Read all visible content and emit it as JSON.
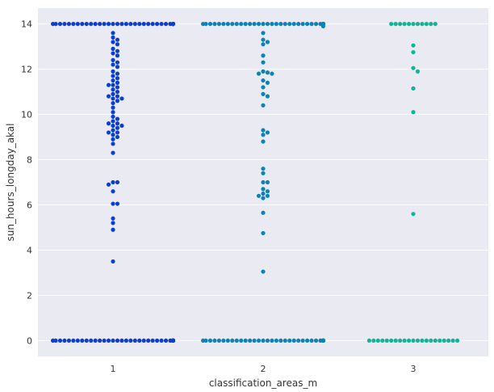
{
  "chart_data": {
    "type": "scatter",
    "subtype": "swarm",
    "xlabel": "classification_areas_m",
    "ylabel": "sun_hours_longday_akal",
    "categories": [
      "1",
      "2",
      "3"
    ],
    "ylim": [
      -0.7,
      14.7
    ],
    "yticks": [
      0,
      2,
      4,
      6,
      8,
      10,
      12,
      14
    ],
    "grid": true,
    "series": [
      {
        "category": "1",
        "color": "#0b3fd0",
        "values": [
          14,
          14,
          14,
          14,
          14,
          14,
          14,
          14,
          14,
          14,
          14,
          14,
          14,
          14,
          14,
          14,
          14,
          14,
          14,
          14,
          14,
          14,
          14,
          14,
          14,
          14,
          14,
          14,
          14,
          14,
          14,
          14,
          14,
          14,
          14,
          14,
          14,
          14,
          14,
          14,
          14,
          14,
          14,
          14,
          14,
          14,
          14,
          14,
          14,
          14,
          14,
          14,
          14,
          14,
          14,
          14,
          14,
          14,
          14,
          14,
          14,
          14,
          14,
          14,
          14,
          14,
          14,
          14,
          14,
          14,
          14,
          14,
          14,
          14,
          14,
          14,
          14,
          14,
          14,
          14,
          14,
          13.6,
          13.4,
          13.3,
          13.2,
          13.1,
          12.9,
          12.8,
          12.7,
          12.6,
          12.4,
          12.3,
          12.2,
          12.1,
          11.9,
          11.8,
          11.7,
          11.6,
          11.5,
          11.4,
          11.3,
          11.3,
          11.2,
          11.1,
          11.0,
          10.9,
          10.8,
          10.8,
          10.7,
          10.7,
          10.6,
          10.5,
          10.3,
          10.1,
          9.9,
          9.8,
          9.7,
          9.6,
          9.6,
          9.5,
          9.5,
          9.4,
          9.3,
          9.2,
          9.2,
          9.1,
          9.0,
          8.9,
          8.7,
          8.3,
          7.0,
          7.0,
          6.9,
          6.6,
          6.05,
          6.05,
          5.4,
          5.2,
          4.9,
          3.5,
          0,
          0,
          0,
          0,
          0,
          0,
          0,
          0,
          0,
          0,
          0,
          0,
          0,
          0,
          0,
          0,
          0,
          0,
          0,
          0,
          0,
          0,
          0,
          0,
          0,
          0,
          0,
          0,
          0,
          0,
          0,
          0,
          0,
          0,
          0,
          0,
          0,
          0,
          0,
          0,
          0,
          0,
          0,
          0,
          0,
          0,
          0,
          0,
          0,
          0,
          0,
          0,
          0,
          0,
          0,
          0,
          0,
          0,
          0,
          0,
          0,
          0,
          0,
          0,
          0,
          0,
          0,
          0,
          0,
          0,
          0,
          0,
          0,
          0,
          0,
          0,
          0,
          0,
          0,
          0,
          0
        ]
      },
      {
        "category": "2",
        "color": "#0a84b8",
        "values": [
          14,
          14,
          14,
          14,
          14,
          14,
          14,
          14,
          14,
          14,
          14,
          14,
          14,
          14,
          14,
          14,
          14,
          14,
          14,
          14,
          14,
          14,
          14,
          14,
          14,
          14,
          14,
          14,
          14,
          14,
          14,
          14,
          14,
          14,
          14,
          14,
          14,
          14,
          14,
          14,
          14,
          14,
          14,
          14,
          14,
          14,
          14,
          14,
          14,
          14,
          14,
          14,
          14,
          14,
          14,
          14,
          14,
          14,
          14,
          14,
          14,
          14,
          14,
          14,
          14,
          14,
          14,
          14,
          14,
          14,
          14,
          14,
          14,
          14,
          14,
          14,
          14,
          14,
          14,
          14,
          14,
          13.9,
          13.6,
          13.3,
          13.2,
          13.1,
          12.6,
          12.3,
          11.9,
          11.85,
          11.8,
          11.8,
          11.5,
          11.4,
          11.2,
          10.9,
          10.8,
          10.4,
          9.3,
          9.2,
          9.1,
          8.8,
          7.6,
          7.4,
          7.0,
          7.0,
          6.7,
          6.6,
          6.5,
          6.4,
          6.4,
          6.3,
          5.65,
          4.75,
          3.05,
          0,
          0,
          0,
          0,
          0,
          0,
          0,
          0,
          0,
          0,
          0,
          0,
          0,
          0,
          0,
          0,
          0,
          0,
          0,
          0,
          0,
          0,
          0,
          0,
          0,
          0,
          0,
          0,
          0,
          0,
          0,
          0,
          0,
          0,
          0,
          0,
          0,
          0,
          0,
          0,
          0,
          0,
          0,
          0,
          0,
          0,
          0,
          0,
          0,
          0,
          0,
          0,
          0,
          0,
          0,
          0,
          0,
          0,
          0,
          0,
          0,
          0,
          0,
          0,
          0,
          0,
          0,
          0,
          0,
          0,
          0,
          0,
          0,
          0,
          0,
          0,
          0,
          0,
          0,
          0,
          0
        ]
      },
      {
        "category": "3",
        "color": "#10b597",
        "values": [
          14,
          14,
          14,
          14,
          14,
          14,
          14,
          14,
          14,
          14,
          14,
          13.05,
          12.75,
          12.05,
          11.9,
          11.15,
          10.1,
          5.6,
          0,
          0,
          0,
          0,
          0,
          0,
          0,
          0,
          0,
          0,
          0,
          0,
          0,
          0,
          0,
          0,
          0,
          0,
          0,
          0,
          0
        ]
      }
    ]
  }
}
